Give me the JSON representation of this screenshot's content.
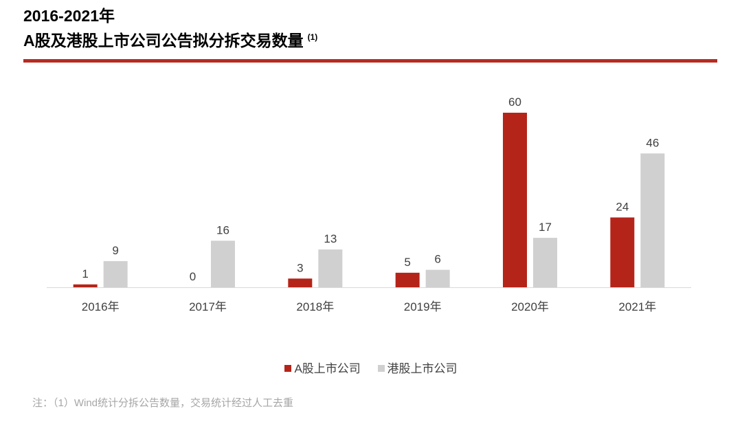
{
  "header": {
    "title_line1": "2016-2021年",
    "title_line2": "A股及港股上市公司公告拟分拆交易数量",
    "title_note": "(1)"
  },
  "colors": {
    "accent_red": "#b72b21",
    "series_a": "#b52419",
    "series_hk": "#d0d0d0"
  },
  "chart_data": {
    "type": "bar",
    "categories": [
      "2016年",
      "2017年",
      "2018年",
      "2019年",
      "2020年",
      "2021年"
    ],
    "series": [
      {
        "name": "A股上市公司",
        "values": [
          1,
          0,
          3,
          5,
          60,
          24
        ]
      },
      {
        "name": "港股上市公司",
        "values": [
          9,
          16,
          13,
          6,
          17,
          46
        ]
      }
    ],
    "ylim": [
      0,
      60
    ],
    "grid": false,
    "legend_position": "bottom",
    "data_labels": true
  },
  "footnote": "注：（1）Wind统计分拆公告数量，交易统计经过人工去重"
}
